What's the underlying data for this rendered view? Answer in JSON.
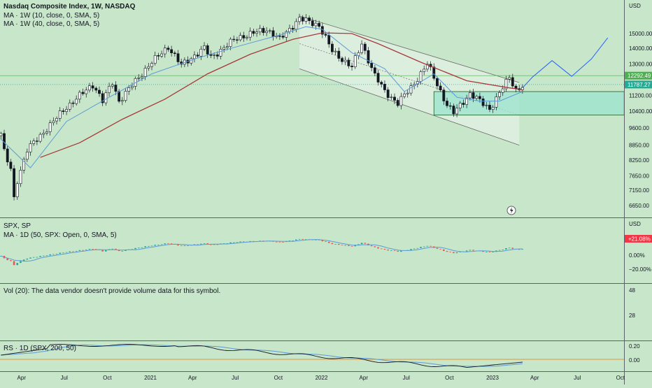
{
  "colors": {
    "background": "#c8e6c9",
    "pane_separator": "#5d6066",
    "candle_up": "#26a69a",
    "candle_down": "#ef5350",
    "candle_wick": "#131722",
    "ma_fast": "#5b9bd5",
    "ma_slow": "#a63a3a",
    "projection": "#2962ff",
    "channel_fill": "#e3f2e5",
    "box_fill": "#9fe3cf",
    "box_border": "#1b5e20",
    "price_tag_green": "#4caf50",
    "price_tag_last": "#22ab94",
    "rs_baseline": "#f57c00",
    "rs_line": "#131722",
    "rs_ma": "#5b9bd5",
    "spx_tag": "#f23645"
  },
  "main": {
    "legend_title": "Nasdaq Composite Index, 1W, NASDAQ",
    "legend_ma1": "MA · 1W (10, close, 0, SMA, 5)",
    "legend_ma2": "MA · 1W (40, close, 0, SMA, 5)",
    "axis_currency": "USD",
    "price_tag_1": "12292.49",
    "price_tag_2": "11787.27"
  },
  "spx": {
    "legend_title": "SPX, SP",
    "legend_ma": "MA · 1D (50, SPX: Open, 0, SMA, 5)",
    "axis_currency": "USD",
    "tag": "+21.08%",
    "axis_labels": [
      "0.00%",
      "−20.00%"
    ]
  },
  "vol": {
    "message": "Vol (20): The data vendor doesn't provide volume data for this symbol.",
    "axis_labels": [
      "48",
      "28"
    ]
  },
  "rs": {
    "legend": "RS · 1D (SPX, 200, 50)",
    "axis_labels": [
      "0.20",
      "0.00"
    ]
  },
  "chart_data": {
    "type": "candlestick",
    "title": "Nasdaq Composite Index, 1W, NASDAQ",
    "timeframe": "1W",
    "y_scale": "log",
    "ylim": [
      6200,
      16500
    ],
    "y_ticks": [
      15000,
      14000,
      13000,
      11200,
      10400,
      9600,
      8850,
      8250,
      7650,
      7150,
      6650
    ],
    "y_tick_labels": [
      "15000.00",
      "14000.00",
      "13000.00",
      "11200.00",
      "10400.00",
      "9600.00",
      "8850.00",
      "8250.00",
      "7650.00",
      "7150.00",
      "6650.00"
    ],
    "x_ticks": [
      "Apr",
      "Jul",
      "Oct",
      "2021",
      "Apr",
      "Jul",
      "Oct",
      "2022",
      "Apr",
      "Jul",
      "Oct",
      "2023",
      "Apr",
      "Jul",
      "Oct"
    ],
    "x_tick_dates": [
      "2020-04-01",
      "2020-07-01",
      "2020-10-01",
      "2021-01-01",
      "2021-04-01",
      "2021-07-01",
      "2021-10-01",
      "2022-01-01",
      "2022-04-01",
      "2022-07-01",
      "2022-10-01",
      "2023-01-01",
      "2023-04-01",
      "2023-07-01",
      "2023-10-01"
    ],
    "x_range": [
      "2020-02-17",
      "2023-10-30"
    ],
    "close_keypoints": [
      {
        "date": "2020-02-17",
        "close": 9350
      },
      {
        "date": "2020-02-24",
        "close": 8570
      },
      {
        "date": "2020-03-09",
        "close": 7870
      },
      {
        "date": "2020-03-16",
        "close": 6880
      },
      {
        "date": "2020-03-23",
        "close": 7500
      },
      {
        "date": "2020-04-13",
        "close": 8650
      },
      {
        "date": "2020-06-08",
        "close": 9900
      },
      {
        "date": "2020-07-06",
        "close": 10600
      },
      {
        "date": "2020-09-01",
        "close": 11800
      },
      {
        "date": "2020-09-21",
        "close": 10900
      },
      {
        "date": "2020-10-12",
        "close": 11900
      },
      {
        "date": "2020-10-26",
        "close": 10900
      },
      {
        "date": "2020-12-28",
        "close": 12900
      },
      {
        "date": "2021-02-08",
        "close": 14100
      },
      {
        "date": "2021-03-08",
        "close": 12900
      },
      {
        "date": "2021-04-26",
        "close": 14000
      },
      {
        "date": "2021-05-10",
        "close": 13400
      },
      {
        "date": "2021-07-05",
        "close": 14700
      },
      {
        "date": "2021-09-06",
        "close": 15300
      },
      {
        "date": "2021-10-04",
        "close": 14600
      },
      {
        "date": "2021-11-15",
        "close": 16100
      },
      {
        "date": "2021-12-27",
        "close": 15600
      },
      {
        "date": "2022-01-24",
        "close": 13800
      },
      {
        "date": "2022-03-07",
        "close": 12800
      },
      {
        "date": "2022-03-28",
        "close": 14300
      },
      {
        "date": "2022-04-25",
        "close": 12300
      },
      {
        "date": "2022-05-16",
        "close": 11400
      },
      {
        "date": "2022-06-13",
        "close": 10800
      },
      {
        "date": "2022-07-11",
        "close": 11600
      },
      {
        "date": "2022-08-15",
        "close": 13000
      },
      {
        "date": "2022-09-26",
        "close": 10700
      },
      {
        "date": "2022-10-10",
        "close": 10300
      },
      {
        "date": "2022-11-14",
        "close": 11300
      },
      {
        "date": "2022-12-26",
        "close": 10500
      },
      {
        "date": "2023-01-23",
        "close": 11600
      },
      {
        "date": "2023-02-06",
        "close": 12200
      },
      {
        "date": "2023-02-20",
        "close": 11500
      },
      {
        "date": "2023-03-06",
        "close": 11700
      }
    ],
    "ma_fast_keypoints": [
      {
        "date": "2020-02-17",
        "value": 9100
      },
      {
        "date": "2020-04-20",
        "value": 7950
      },
      {
        "date": "2020-07-06",
        "value": 9900
      },
      {
        "date": "2020-10-05",
        "value": 11100
      },
      {
        "date": "2021-01-04",
        "value": 12400
      },
      {
        "date": "2021-04-05",
        "value": 13300
      },
      {
        "date": "2021-07-05",
        "value": 14100
      },
      {
        "date": "2021-10-04",
        "value": 14900
      },
      {
        "date": "2021-11-29",
        "value": 15500
      },
      {
        "date": "2022-01-03",
        "value": 15300
      },
      {
        "date": "2022-03-07",
        "value": 13700
      },
      {
        "date": "2022-05-16",
        "value": 12700
      },
      {
        "date": "2022-06-27",
        "value": 11400
      },
      {
        "date": "2022-08-29",
        "value": 12400
      },
      {
        "date": "2022-10-17",
        "value": 11100
      },
      {
        "date": "2022-12-05",
        "value": 10900
      },
      {
        "date": "2023-01-16",
        "value": 10900
      },
      {
        "date": "2023-03-06",
        "value": 11400
      }
    ],
    "ma_slow_keypoints": [
      {
        "date": "2020-05-11",
        "value": 8350
      },
      {
        "date": "2020-08-03",
        "value": 8950
      },
      {
        "date": "2020-11-02",
        "value": 10000
      },
      {
        "date": "2021-02-01",
        "value": 11000
      },
      {
        "date": "2021-05-03",
        "value": 12400
      },
      {
        "date": "2021-08-02",
        "value": 13600
      },
      {
        "date": "2021-11-01",
        "value": 14600
      },
      {
        "date": "2022-01-03",
        "value": 15050
      },
      {
        "date": "2022-03-07",
        "value": 15000
      },
      {
        "date": "2022-05-02",
        "value": 14300
      },
      {
        "date": "2022-08-01",
        "value": 13100
      },
      {
        "date": "2022-11-07",
        "value": 12000
      },
      {
        "date": "2023-02-06",
        "value": 11600
      },
      {
        "date": "2023-03-06",
        "value": 11500
      }
    ],
    "channel": {
      "upper": [
        {
          "date": "2021-11-15",
          "value": 16300
        },
        {
          "date": "2023-02-27",
          "value": 11900
        }
      ],
      "lower": [
        {
          "date": "2021-11-15",
          "value": 12700
        },
        {
          "date": "2023-02-27",
          "value": 8850
        }
      ],
      "mid": [
        {
          "date": "2021-11-15",
          "value": 14300
        },
        {
          "date": "2023-02-27",
          "value": 10200
        }
      ]
    },
    "target_box": {
      "date_from": "2022-08-29",
      "date_to": "2023-10-09",
      "top": 11400,
      "bottom": 10200
    },
    "projection_path": [
      {
        "date": "2023-03-06",
        "value": 11600
      },
      {
        "date": "2023-03-27",
        "value": 12200
      },
      {
        "date": "2023-05-08",
        "value": 13200
      },
      {
        "date": "2023-06-19",
        "value": 12250
      },
      {
        "date": "2023-07-31",
        "value": 13300
      },
      {
        "date": "2023-09-04",
        "value": 14700
      }
    ],
    "reference_lines": [
      {
        "label": "12292.49",
        "value": 12292.49,
        "style": "solid"
      },
      {
        "label": "11787.27",
        "value": 11787.27,
        "style": "dashed"
      }
    ],
    "panes": [
      {
        "name": "SPX",
        "type": "candlestick",
        "unit": "percent",
        "y_ticks": [
          0,
          -20
        ],
        "y_tick_labels": [
          "0.00%",
          "−20.00%"
        ],
        "last_label": "+21.08%"
      },
      {
        "name": "Vol (20)",
        "type": "message",
        "y_ticks": [
          48,
          28
        ]
      },
      {
        "name": "RS",
        "type": "line",
        "y_ticks": [
          0.2,
          0.0
        ],
        "y_tick_labels": [
          "0.20",
          "0.00"
        ]
      }
    ]
  }
}
